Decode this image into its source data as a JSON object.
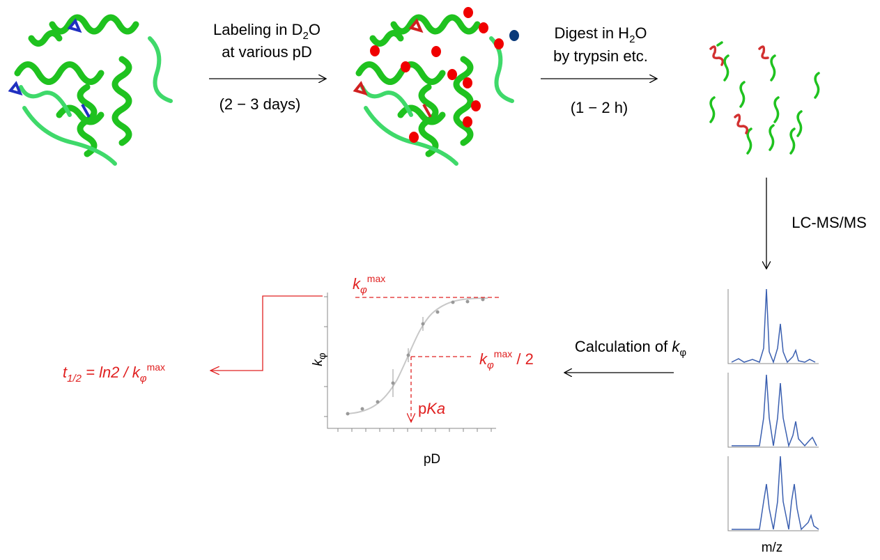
{
  "step1": {
    "line1": [
      "Labeling in D",
      "2",
      "O"
    ],
    "line2": "at various pD",
    "time": "(2 − 3 days)"
  },
  "step2": {
    "line1": [
      "Digest in H",
      "2",
      "O"
    ],
    "line2": "by trypsin etc.",
    "time": "(1 − 2 h)"
  },
  "step3": {
    "label": "LC-MS/MS",
    "x_axis": "m/z"
  },
  "step4": {
    "label": [
      "Calculation of ",
      "k",
      "φ"
    ]
  },
  "plot": {
    "y_axis": [
      "k",
      "φ"
    ],
    "x_axis": "pD",
    "max_label": [
      "k",
      "φ",
      "max"
    ],
    "half_label": [
      "k",
      "φ",
      "max",
      " / 2"
    ],
    "pka_label": [
      "p",
      "Ka"
    ]
  },
  "result": [
    "t",
    "1/2",
    " = ",
    "ln2 / k",
    "φ",
    "max"
  ]
}
